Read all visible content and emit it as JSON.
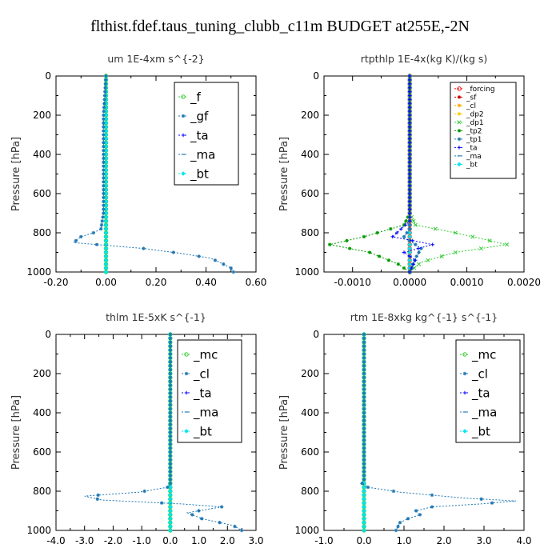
{
  "title": "flthist.fdef.taus_tuning_clubb_c11m  BUDGET at255E,-2N",
  "chart_data": [
    {
      "type": "line",
      "title": "um   1E-4xm s^{-2}",
      "xlabel": "",
      "ylabel": "Pressure [hPa]",
      "xlim": [
        -0.2,
        0.6
      ],
      "ylim": [
        1000,
        0
      ],
      "xticks": [
        "-0.20",
        "0.00",
        "0.20",
        "0.40",
        "0.60"
      ],
      "xtick_values": [
        -0.2,
        0.0,
        0.2,
        0.4,
        0.6
      ],
      "yticks": [
        "0",
        "200",
        "400",
        "600",
        "800",
        "1000"
      ],
      "legend_position": "top-right",
      "series": [
        {
          "name": "_f",
          "color": "#33cc33",
          "marker": "circle",
          "points": [
            [
              0,
              0
            ],
            [
              0,
              100
            ],
            [
              0,
              200
            ],
            [
              0,
              300
            ],
            [
              0,
              400
            ],
            [
              0,
              500
            ],
            [
              0,
              600
            ],
            [
              0,
              700
            ],
            [
              0,
              800
            ],
            [
              0,
              900
            ],
            [
              0,
              1000
            ]
          ]
        },
        {
          "name": "_gf",
          "color": "#1f77b4",
          "marker": "star",
          "points": [
            [
              0,
              0
            ],
            [
              -0.005,
              100
            ],
            [
              -0.01,
              200
            ],
            [
              -0.01,
              300
            ],
            [
              -0.01,
              400
            ],
            [
              -0.01,
              500
            ],
            [
              -0.01,
              600
            ],
            [
              -0.01,
              700
            ],
            [
              -0.02,
              780
            ],
            [
              -0.05,
              800
            ],
            [
              -0.1,
              820
            ],
            [
              -0.13,
              850
            ],
            [
              0.15,
              880
            ],
            [
              0.3,
              905
            ],
            [
              0.42,
              930
            ],
            [
              0.47,
              960
            ],
            [
              0.5,
              980
            ],
            [
              0.51,
              1000
            ]
          ]
        },
        {
          "name": "_ta",
          "color": "#0000ff",
          "marker": "plus",
          "points": [
            [
              0,
              0
            ],
            [
              0,
              500
            ],
            [
              0,
              1000
            ]
          ]
        },
        {
          "name": "_ma",
          "color": "#1f77b4",
          "marker": "dash",
          "points": [
            [
              0,
              0
            ],
            [
              0,
              500
            ],
            [
              0,
              1000
            ]
          ]
        },
        {
          "name": "_bt",
          "color": "#00e5ee",
          "marker": "diamond",
          "points": [
            [
              0,
              0
            ],
            [
              0,
              500
            ],
            [
              0,
              1000
            ]
          ]
        }
      ]
    },
    {
      "type": "line",
      "title": "rtpthlp   1E-4x(kg K)/(kg s)",
      "xlabel": "",
      "ylabel": "Pressure [hPa]",
      "xlim": [
        -0.0015,
        0.002
      ],
      "ylim": [
        1000,
        0
      ],
      "xticks": [
        "-0.0010",
        "0.0000",
        "0.0010",
        "0.0020"
      ],
      "xtick_values": [
        -0.001,
        0.0,
        0.001,
        0.002
      ],
      "yticks": [
        "0",
        "200",
        "400",
        "600",
        "800",
        "1000"
      ],
      "legend_position": "top-right",
      "series": [
        {
          "name": "_forcing",
          "color": "#ff0000",
          "marker": "circle",
          "points": [
            [
              0,
              0
            ],
            [
              0,
              1000
            ]
          ]
        },
        {
          "name": "_sf",
          "color": "#cc0000",
          "marker": "star",
          "points": [
            [
              0,
              0
            ],
            [
              0,
              1000
            ]
          ]
        },
        {
          "name": "_cl",
          "color": "#ffaa00",
          "marker": "star",
          "points": [
            [
              0,
              0
            ],
            [
              0,
              1000
            ]
          ]
        },
        {
          "name": "_dp2",
          "color": "#ffcc00",
          "marker": "star",
          "points": [
            [
              0,
              0
            ],
            [
              0,
              1000
            ]
          ]
        },
        {
          "name": "_dp1",
          "color": "#33cc33",
          "marker": "x",
          "points": [
            [
              0,
              0
            ],
            [
              0,
              700
            ],
            [
              0.0001,
              760
            ],
            [
              0.0008,
              800
            ],
            [
              0.0017,
              860
            ],
            [
              0.0008,
              900
            ],
            [
              0.0002,
              950
            ],
            [
              0,
              1000
            ]
          ]
        },
        {
          "name": "_tp2",
          "color": "#009900",
          "marker": "star",
          "points": [
            [
              0,
              0
            ],
            [
              0,
              700
            ],
            [
              -0.0001,
              760
            ],
            [
              -0.0008,
              820
            ],
            [
              -0.0014,
              860
            ],
            [
              -0.0007,
              900
            ],
            [
              -0.0002,
              960
            ],
            [
              0,
              1000
            ]
          ]
        },
        {
          "name": "_tp1",
          "color": "#1f77b4",
          "marker": "star",
          "points": [
            [
              0,
              0
            ],
            [
              0,
              780
            ],
            [
              -0.0001,
              820
            ],
            [
              0.0002,
              880
            ],
            [
              0.0001,
              930
            ],
            [
              0,
              1000
            ]
          ]
        },
        {
          "name": "_ta",
          "color": "#0000ff",
          "marker": "plus",
          "points": [
            [
              0,
              0
            ],
            [
              0,
              740
            ],
            [
              -0.0003,
              820
            ],
            [
              0.0004,
              860
            ],
            [
              -0.0001,
              900
            ],
            [
              0.0001,
              940
            ],
            [
              0,
              1000
            ]
          ]
        },
        {
          "name": "_ma",
          "color": "#1f77b4",
          "marker": "dash",
          "points": [
            [
              0,
              0
            ],
            [
              0,
              1000
            ]
          ]
        },
        {
          "name": "_bt",
          "color": "#00e5ee",
          "marker": "diamond",
          "points": [
            [
              0,
              0
            ],
            [
              0,
              1000
            ]
          ]
        }
      ]
    },
    {
      "type": "line",
      "title": "thlm   1E-5xK s^{-1}",
      "xlabel": "",
      "ylabel": "Pressure [hPa]",
      "xlim": [
        -4.0,
        3.0
      ],
      "ylim": [
        1000,
        0
      ],
      "xticks": [
        "-4.0",
        "-3.0",
        "-2.0",
        "-1.0",
        "0.0",
        "1.0",
        "2.0",
        "3.0"
      ],
      "xtick_values": [
        -4,
        -3,
        -2,
        -1,
        0,
        1,
        2,
        3
      ],
      "yticks": [
        "0",
        "200",
        "400",
        "600",
        "800",
        "1000"
      ],
      "legend_position": "top-right",
      "series": [
        {
          "name": "_mc",
          "color": "#33cc33",
          "marker": "circle",
          "points": [
            [
              0,
              0
            ],
            [
              0,
              100
            ],
            [
              0,
              200
            ],
            [
              0,
              300
            ],
            [
              0,
              400
            ],
            [
              0,
              500
            ],
            [
              0,
              600
            ],
            [
              0,
              700
            ],
            [
              0,
              800
            ],
            [
              0,
              900
            ],
            [
              0,
              1000
            ]
          ]
        },
        {
          "name": "_cl",
          "color": "#1f77b4",
          "marker": "star",
          "points": [
            [
              0,
              0
            ],
            [
              0,
              500
            ],
            [
              0,
              760
            ],
            [
              -0.1,
              780
            ],
            [
              -1.1,
              805
            ],
            [
              -3.0,
              825
            ],
            [
              -2.4,
              845
            ],
            [
              0.4,
              865
            ],
            [
              1.8,
              880
            ],
            [
              0.6,
              910
            ],
            [
              1.1,
              940
            ],
            [
              2.2,
              975
            ],
            [
              2.5,
              1000
            ]
          ]
        },
        {
          "name": "_ta",
          "color": "#0000ff",
          "marker": "plus",
          "points": [
            [
              0,
              0
            ],
            [
              0,
              500
            ],
            [
              0,
              1000
            ]
          ]
        },
        {
          "name": "_ma",
          "color": "#1f77b4",
          "marker": "dash",
          "points": [
            [
              0,
              0
            ],
            [
              0,
              500
            ],
            [
              0,
              1000
            ]
          ]
        },
        {
          "name": "_bt",
          "color": "#00e5ee",
          "marker": "diamond",
          "points": [
            [
              0,
              0
            ],
            [
              0,
              500
            ],
            [
              0,
              1000
            ]
          ]
        }
      ]
    },
    {
      "type": "line",
      "title": "rtm   1E-8xkg kg^{-1} s^{-1}",
      "xlabel": "",
      "ylabel": "Pressure [hPa]",
      "xlim": [
        -1.0,
        4.0
      ],
      "ylim": [
        1000,
        0
      ],
      "xticks": [
        "-1.0",
        "0.0",
        "1.0",
        "2.0",
        "3.0",
        "4.0"
      ],
      "xtick_values": [
        -1,
        0,
        1,
        2,
        3,
        4
      ],
      "yticks": [
        "0",
        "200",
        "400",
        "600",
        "800",
        "1000"
      ],
      "legend_position": "top-right",
      "series": [
        {
          "name": "_mc",
          "color": "#33cc33",
          "marker": "circle",
          "points": [
            [
              0,
              0
            ],
            [
              0,
              100
            ],
            [
              0,
              200
            ],
            [
              0,
              300
            ],
            [
              0,
              400
            ],
            [
              0,
              500
            ],
            [
              0,
              600
            ],
            [
              0,
              700
            ],
            [
              0,
              800
            ],
            [
              0,
              900
            ],
            [
              0,
              1000
            ]
          ]
        },
        {
          "name": "_cl",
          "color": "#1f77b4",
          "marker": "star",
          "points": [
            [
              0,
              0
            ],
            [
              0,
              500
            ],
            [
              0,
              740
            ],
            [
              -0.05,
              760
            ],
            [
              0.1,
              780
            ],
            [
              0.9,
              805
            ],
            [
              2.5,
              835
            ],
            [
              3.8,
              850
            ],
            [
              2.9,
              865
            ],
            [
              1.7,
              880
            ],
            [
              1.3,
              900
            ],
            [
              1.4,
              920
            ],
            [
              1.1,
              940
            ],
            [
              0.9,
              960
            ],
            [
              0.85,
              980
            ],
            [
              0.8,
              1000
            ]
          ]
        },
        {
          "name": "_ta",
          "color": "#0000ff",
          "marker": "plus",
          "points": [
            [
              0,
              0
            ],
            [
              0,
              500
            ],
            [
              0,
              1000
            ]
          ]
        },
        {
          "name": "_ma",
          "color": "#1f77b4",
          "marker": "dash",
          "points": [
            [
              0,
              0
            ],
            [
              0,
              500
            ],
            [
              0,
              1000
            ]
          ]
        },
        {
          "name": "_bt",
          "color": "#00e5ee",
          "marker": "diamond",
          "points": [
            [
              0,
              0
            ],
            [
              0,
              500
            ],
            [
              0,
              1000
            ]
          ]
        }
      ]
    }
  ]
}
